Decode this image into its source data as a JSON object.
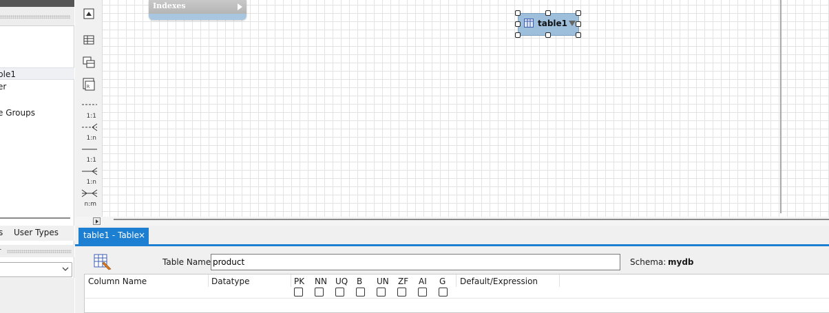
{
  "left_panel": {
    "items": [
      {
        "label": "ble1",
        "selected": true
      },
      {
        "label": "er",
        "selected": false
      },
      {
        "label": "e Groups",
        "selected": false
      }
    ],
    "tabs": [
      "s",
      "User Types"
    ],
    "filter_label": "r"
  },
  "toolbar": {
    "relations": [
      "1:1",
      "1:n",
      "1:1",
      "1:n",
      "n:m"
    ]
  },
  "canvas": {
    "indexes_title": "Indexes",
    "table_node_name": "table1"
  },
  "editor": {
    "tab_label": "table1 - Table",
    "tab_close": "×",
    "table_name_label": "Table Name:",
    "table_name_value": "product",
    "schema_label": "Schema:",
    "schema_value": "mydb",
    "columns": {
      "name": "Column Name",
      "datatype": "Datatype",
      "flags": [
        "PK",
        "NN",
        "UQ",
        "B",
        "UN",
        "ZF",
        "AI",
        "G"
      ],
      "default": "Default/Expression"
    }
  },
  "colors": {
    "accent": "#1d7fd1",
    "table_node": "#9ebfdc"
  }
}
